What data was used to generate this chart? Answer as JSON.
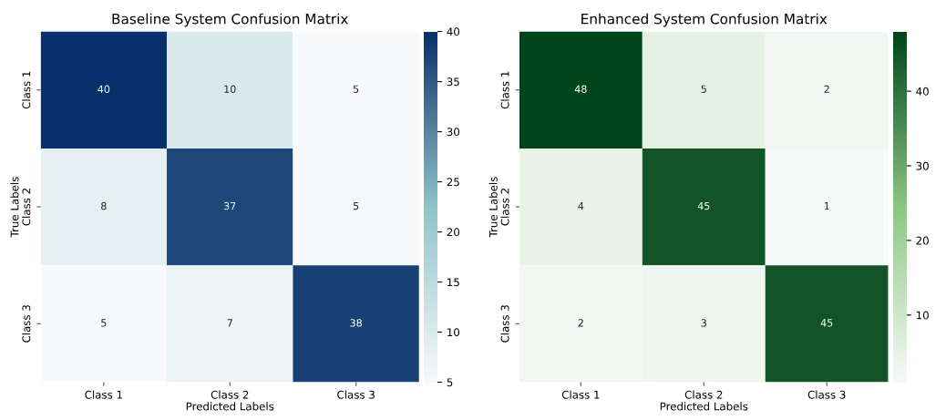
{
  "chart_data": [
    {
      "type": "heatmap",
      "title": "Baseline System Confusion Matrix",
      "xlabel": "Predicted Labels",
      "ylabel": "True Labels",
      "categories": [
        "Class 1",
        "Class 2",
        "Class 3"
      ],
      "y_categories": [
        "Class 1",
        "Class 2",
        "Class 3"
      ],
      "cells": [
        [
          40,
          10,
          5
        ],
        [
          8,
          37,
          5
        ],
        [
          5,
          7,
          38
        ]
      ],
      "color": "#08306b",
      "clim": [
        5,
        40
      ],
      "cticks": [
        5,
        10,
        15,
        20,
        25,
        30,
        35,
        40
      ],
      "data_labels": true
    },
    {
      "type": "heatmap",
      "title": "Enhanced System Confusion Matrix",
      "xlabel": "Predicted Labels",
      "ylabel": "True Labels",
      "categories": [
        "Class 1",
        "Class 2",
        "Class 3"
      ],
      "y_categories": [
        "Class 1",
        "Class 2",
        "Class 3"
      ],
      "cells": [
        [
          48,
          5,
          2
        ],
        [
          4,
          45,
          1
        ],
        [
          2,
          3,
          45
        ]
      ],
      "color": "#00441b",
      "clim": [
        1,
        48
      ],
      "cticks": [
        10,
        20,
        30,
        40
      ],
      "data_labels": true
    }
  ]
}
